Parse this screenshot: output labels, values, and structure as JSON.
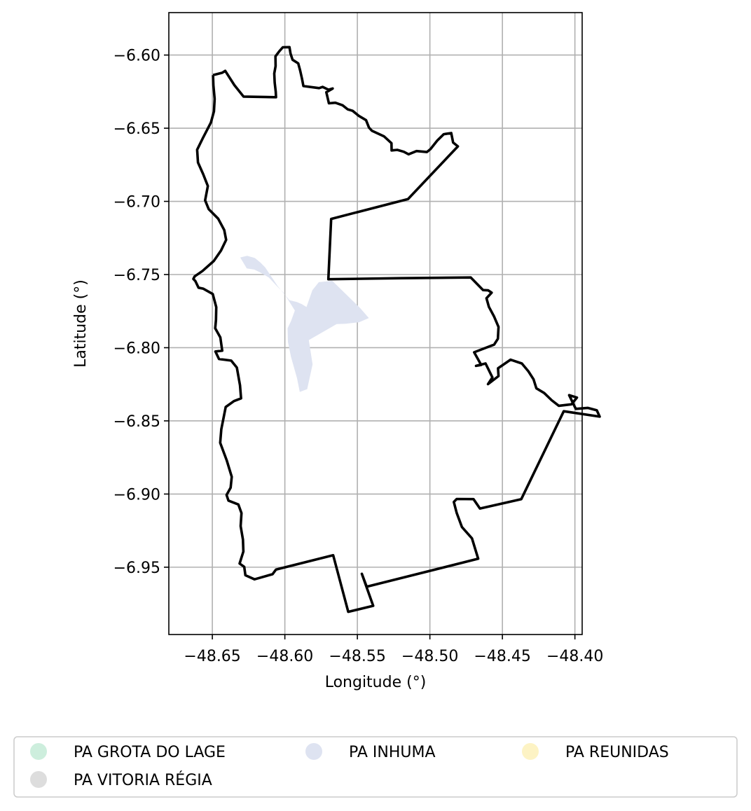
{
  "chart_data": {
    "type": "map",
    "xlabel": "Longitude (°)",
    "ylabel": "Latitude (°)",
    "xlim": [
      -48.68,
      -48.395
    ],
    "ylim": [
      -6.996,
      -6.571
    ],
    "xticks": [
      -48.65,
      -48.6,
      -48.55,
      -48.5,
      -48.45,
      -48.4
    ],
    "xtick_labels": [
      "−48.65",
      "−48.60",
      "−48.55",
      "−48.50",
      "−48.45",
      "−48.40"
    ],
    "yticks": [
      -6.6,
      -6.65,
      -6.7,
      -6.75,
      -6.8,
      -6.85,
      -6.9,
      -6.95
    ],
    "ytick_labels": [
      "−6.60",
      "−6.65",
      "−6.70",
      "−6.75",
      "−6.80",
      "−6.85",
      "−6.90",
      "−6.95"
    ],
    "grid": true,
    "legend_position": "bottom",
    "legend": [
      {
        "label": "PA GROTA DO LAGE",
        "color": "#cdeedd"
      },
      {
        "label": "PA INHUMA",
        "color": "#dee3f1"
      },
      {
        "label": "PA REUNIDAS",
        "color": "#fdf3c4"
      },
      {
        "label": "PA VITORIA RÉGIA",
        "color": "#dddddd"
      }
    ],
    "boundary": {
      "color": "#000000",
      "coordinates": [
        [
          -48.6495,
          -6.6137
        ],
        [
          -48.6432,
          -6.6121
        ],
        [
          -48.6411,
          -6.6108
        ],
        [
          -48.6348,
          -6.6206
        ],
        [
          -48.6285,
          -6.6284
        ],
        [
          -48.6061,
          -6.6288
        ],
        [
          -48.6063,
          -6.6251
        ],
        [
          -48.607,
          -6.6188
        ],
        [
          -48.6073,
          -6.6126
        ],
        [
          -48.6064,
          -6.6075
        ],
        [
          -48.6065,
          -6.6009
        ],
        [
          -48.6038,
          -6.5974
        ],
        [
          -48.6014,
          -6.5947
        ],
        [
          -48.5968,
          -6.5946
        ],
        [
          -48.5961,
          -6.599
        ],
        [
          -48.5947,
          -6.6032
        ],
        [
          -48.5908,
          -6.6057
        ],
        [
          -48.5895,
          -6.6105
        ],
        [
          -48.5882,
          -6.616
        ],
        [
          -48.5872,
          -6.6212
        ],
        [
          -48.5764,
          -6.6226
        ],
        [
          -48.5739,
          -6.6218
        ],
        [
          -48.5699,
          -6.6237
        ],
        [
          -48.567,
          -6.6229
        ],
        [
          -48.5714,
          -6.6254
        ],
        [
          -48.5696,
          -6.633
        ],
        [
          -48.5652,
          -6.6326
        ],
        [
          -48.5602,
          -6.6343
        ],
        [
          -48.5567,
          -6.6371
        ],
        [
          -48.5533,
          -6.6381
        ],
        [
          -48.5491,
          -6.6415
        ],
        [
          -48.544,
          -6.6445
        ],
        [
          -48.542,
          -6.6496
        ],
        [
          -48.5399,
          -6.6518
        ],
        [
          -48.5317,
          -6.6555
        ],
        [
          -48.5265,
          -6.6602
        ],
        [
          -48.5264,
          -6.6652
        ],
        [
          -48.5225,
          -6.6648
        ],
        [
          -48.518,
          -6.6661
        ],
        [
          -48.5147,
          -6.6678
        ],
        [
          -48.5092,
          -6.6656
        ],
        [
          -48.5021,
          -6.6663
        ],
        [
          -48.4996,
          -6.6643
        ],
        [
          -48.4948,
          -6.6583
        ],
        [
          -48.4904,
          -6.6541
        ],
        [
          -48.4853,
          -6.6533
        ],
        [
          -48.484,
          -6.6598
        ],
        [
          -48.4807,
          -6.6624
        ],
        [
          -48.5151,
          -6.6984
        ],
        [
          -48.5681,
          -6.712
        ],
        [
          -48.57,
          -6.7532
        ],
        [
          -48.5197,
          -6.7525
        ],
        [
          -48.4718,
          -6.752
        ],
        [
          -48.4633,
          -6.7606
        ],
        [
          -48.4598,
          -6.7608
        ],
        [
          -48.4574,
          -6.7624
        ],
        [
          -48.461,
          -6.7662
        ],
        [
          -48.4593,
          -6.7721
        ],
        [
          -48.4558,
          -6.7785
        ],
        [
          -48.4527,
          -6.7858
        ],
        [
          -48.4531,
          -6.7939
        ],
        [
          -48.4557,
          -6.7979
        ],
        [
          -48.4695,
          -6.8031
        ],
        [
          -48.4646,
          -6.8118
        ],
        [
          -48.4682,
          -6.8124
        ],
        [
          -48.4616,
          -6.8108
        ],
        [
          -48.4569,
          -6.8203
        ],
        [
          -48.4599,
          -6.8249
        ],
        [
          -48.4527,
          -6.8194
        ],
        [
          -48.453,
          -6.8141
        ],
        [
          -48.4444,
          -6.8082
        ],
        [
          -48.4366,
          -6.8108
        ],
        [
          -48.4321,
          -6.8161
        ],
        [
          -48.4285,
          -6.8216
        ],
        [
          -48.4266,
          -6.8277
        ],
        [
          -48.4212,
          -6.831
        ],
        [
          -48.416,
          -6.8359
        ],
        [
          -48.4111,
          -6.8397
        ],
        [
          -48.4024,
          -6.8387
        ],
        [
          -48.3986,
          -6.8341
        ],
        [
          -48.404,
          -6.8324
        ],
        [
          -48.3994,
          -6.8418
        ],
        [
          -48.3912,
          -6.8411
        ],
        [
          -48.3849,
          -6.8428
        ],
        [
          -48.3829,
          -6.8471
        ],
        [
          -48.4077,
          -6.8434
        ],
        [
          -48.437,
          -6.9035
        ],
        [
          -48.4655,
          -6.9099
        ],
        [
          -48.4699,
          -6.9035
        ],
        [
          -48.4815,
          -6.9034
        ],
        [
          -48.4835,
          -6.9054
        ],
        [
          -48.4815,
          -6.9129
        ],
        [
          -48.4779,
          -6.9226
        ],
        [
          -48.471,
          -6.9303
        ],
        [
          -48.4667,
          -6.9442
        ],
        [
          -48.5436,
          -6.9633
        ],
        [
          -48.5469,
          -6.9545
        ],
        [
          -48.5391,
          -6.9764
        ],
        [
          -48.5563,
          -6.9805
        ],
        [
          -48.5667,
          -6.9418
        ],
        [
          -48.6061,
          -6.9516
        ],
        [
          -48.6085,
          -6.9548
        ],
        [
          -48.6209,
          -6.9583
        ],
        [
          -48.6272,
          -6.9555
        ],
        [
          -48.628,
          -6.9497
        ],
        [
          -48.6312,
          -6.9475
        ],
        [
          -48.6286,
          -6.9393
        ],
        [
          -48.6289,
          -6.9312
        ],
        [
          -48.6305,
          -6.9219
        ],
        [
          -48.6299,
          -6.913
        ],
        [
          -48.6321,
          -6.9071
        ],
        [
          -48.6389,
          -6.9045
        ],
        [
          -48.6402,
          -6.9006
        ],
        [
          -48.6374,
          -6.8957
        ],
        [
          -48.6366,
          -6.8882
        ],
        [
          -48.6401,
          -6.8769
        ],
        [
          -48.6446,
          -6.865
        ],
        [
          -48.6438,
          -6.8557
        ],
        [
          -48.6408,
          -6.8405
        ],
        [
          -48.6351,
          -6.8365
        ],
        [
          -48.6302,
          -6.8346
        ],
        [
          -48.6309,
          -6.8257
        ],
        [
          -48.6331,
          -6.8136
        ],
        [
          -48.637,
          -6.8088
        ],
        [
          -48.6454,
          -6.8077
        ],
        [
          -48.6479,
          -6.8026
        ],
        [
          -48.6432,
          -6.802
        ],
        [
          -48.6445,
          -6.793
        ],
        [
          -48.648,
          -6.7867
        ],
        [
          -48.6475,
          -6.781
        ],
        [
          -48.6473,
          -6.7723
        ],
        [
          -48.6497,
          -6.7633
        ],
        [
          -48.6564,
          -6.7596
        ],
        [
          -48.6595,
          -6.759
        ],
        [
          -48.6617,
          -6.7545
        ],
        [
          -48.6631,
          -6.753
        ],
        [
          -48.6622,
          -6.7513
        ],
        [
          -48.6567,
          -6.7475
        ],
        [
          -48.649,
          -6.7407
        ],
        [
          -48.644,
          -6.7336
        ],
        [
          -48.6405,
          -6.7263
        ],
        [
          -48.6418,
          -6.7196
        ],
        [
          -48.646,
          -6.7118
        ],
        [
          -48.6525,
          -6.7053
        ],
        [
          -48.655,
          -6.6993
        ],
        [
          -48.6531,
          -6.6895
        ],
        [
          -48.6563,
          -6.6815
        ],
        [
          -48.6599,
          -6.6734
        ],
        [
          -48.6605,
          -6.6647
        ],
        [
          -48.6566,
          -6.6569
        ],
        [
          -48.651,
          -6.6462
        ],
        [
          -48.6489,
          -6.6385
        ],
        [
          -48.6484,
          -6.63
        ],
        [
          -48.6493,
          -6.6206
        ],
        [
          -48.6495,
          -6.6137
        ]
      ]
    },
    "parcels": [
      {
        "name": "PA INHUMA",
        "color": "#dee3f1",
        "coordinates": [
          [
            -48.6308,
            -6.7383
          ],
          [
            -48.626,
            -6.7372
          ],
          [
            -48.6207,
            -6.7387
          ],
          [
            -48.6169,
            -6.7417
          ],
          [
            -48.6136,
            -6.7451
          ],
          [
            -48.6051,
            -6.7577
          ],
          [
            -48.6011,
            -6.7626
          ],
          [
            -48.5968,
            -6.7675
          ],
          [
            -48.5917,
            -6.7688
          ],
          [
            -48.5883,
            -6.7702
          ],
          [
            -48.5851,
            -6.7722
          ],
          [
            -48.581,
            -6.7607
          ],
          [
            -48.5766,
            -6.7552
          ],
          [
            -48.5673,
            -6.7543
          ],
          [
            -48.5574,
            -6.7639
          ],
          [
            -48.548,
            -6.773
          ],
          [
            -48.5421,
            -6.7797
          ],
          [
            -48.5488,
            -6.7826
          ],
          [
            -48.5579,
            -6.7836
          ],
          [
            -48.5643,
            -6.7839
          ],
          [
            -48.5835,
            -6.7948
          ],
          [
            -48.5809,
            -6.8114
          ],
          [
            -48.5846,
            -6.8283
          ],
          [
            -48.5897,
            -6.8302
          ],
          [
            -48.5916,
            -6.8209
          ],
          [
            -48.5958,
            -6.8061
          ],
          [
            -48.5979,
            -6.7961
          ],
          [
            -48.5981,
            -6.7867
          ],
          [
            -48.5958,
            -6.7819
          ],
          [
            -48.5931,
            -6.7746
          ],
          [
            -48.6008,
            -6.7625
          ],
          [
            -48.6056,
            -6.7578
          ],
          [
            -48.611,
            -6.752
          ],
          [
            -48.6175,
            -6.7483
          ],
          [
            -48.6211,
            -6.7466
          ],
          [
            -48.6263,
            -6.7458
          ],
          [
            -48.6308,
            -6.7383
          ]
        ]
      }
    ]
  }
}
